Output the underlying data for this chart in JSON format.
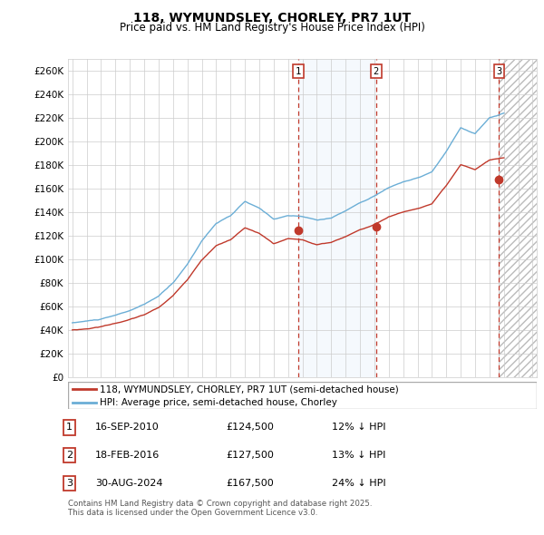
{
  "title": "118, WYMUNDSLEY, CHORLEY, PR7 1UT",
  "subtitle": "Price paid vs. HM Land Registry's House Price Index (HPI)",
  "legend_line1": "118, WYMUNDSLEY, CHORLEY, PR7 1UT (semi-detached house)",
  "legend_line2": "HPI: Average price, semi-detached house, Chorley",
  "ylabel_ticks": [
    "£0",
    "£20K",
    "£40K",
    "£60K",
    "£80K",
    "£100K",
    "£120K",
    "£140K",
    "£160K",
    "£180K",
    "£200K",
    "£220K",
    "£240K",
    "£260K"
  ],
  "ytick_values": [
    0,
    20000,
    40000,
    60000,
    80000,
    100000,
    120000,
    140000,
    160000,
    180000,
    200000,
    220000,
    240000,
    260000
  ],
  "ylim": [
    0,
    270000
  ],
  "xlim_start": 1994.7,
  "xlim_end": 2027.3,
  "transaction_dates_num": [
    2010.71,
    2016.12,
    2024.66
  ],
  "transaction_labels": [
    "1",
    "2",
    "3"
  ],
  "transaction_rows": [
    [
      "1",
      "16-SEP-2010",
      "£124,500",
      "12% ↓ HPI"
    ],
    [
      "2",
      "18-FEB-2016",
      "£127,500",
      "13% ↓ HPI"
    ],
    [
      "3",
      "30-AUG-2024",
      "£167,500",
      "24% ↓ HPI"
    ]
  ],
  "footer_text": "Contains HM Land Registry data © Crown copyright and database right 2025.\nThis data is licensed under the Open Government Licence v3.0.",
  "hpi_color": "#6baed6",
  "price_color": "#c0392b",
  "vline_color": "#c0392b",
  "shade_color": "#ddeeff",
  "hatch_color": "#cccccc"
}
